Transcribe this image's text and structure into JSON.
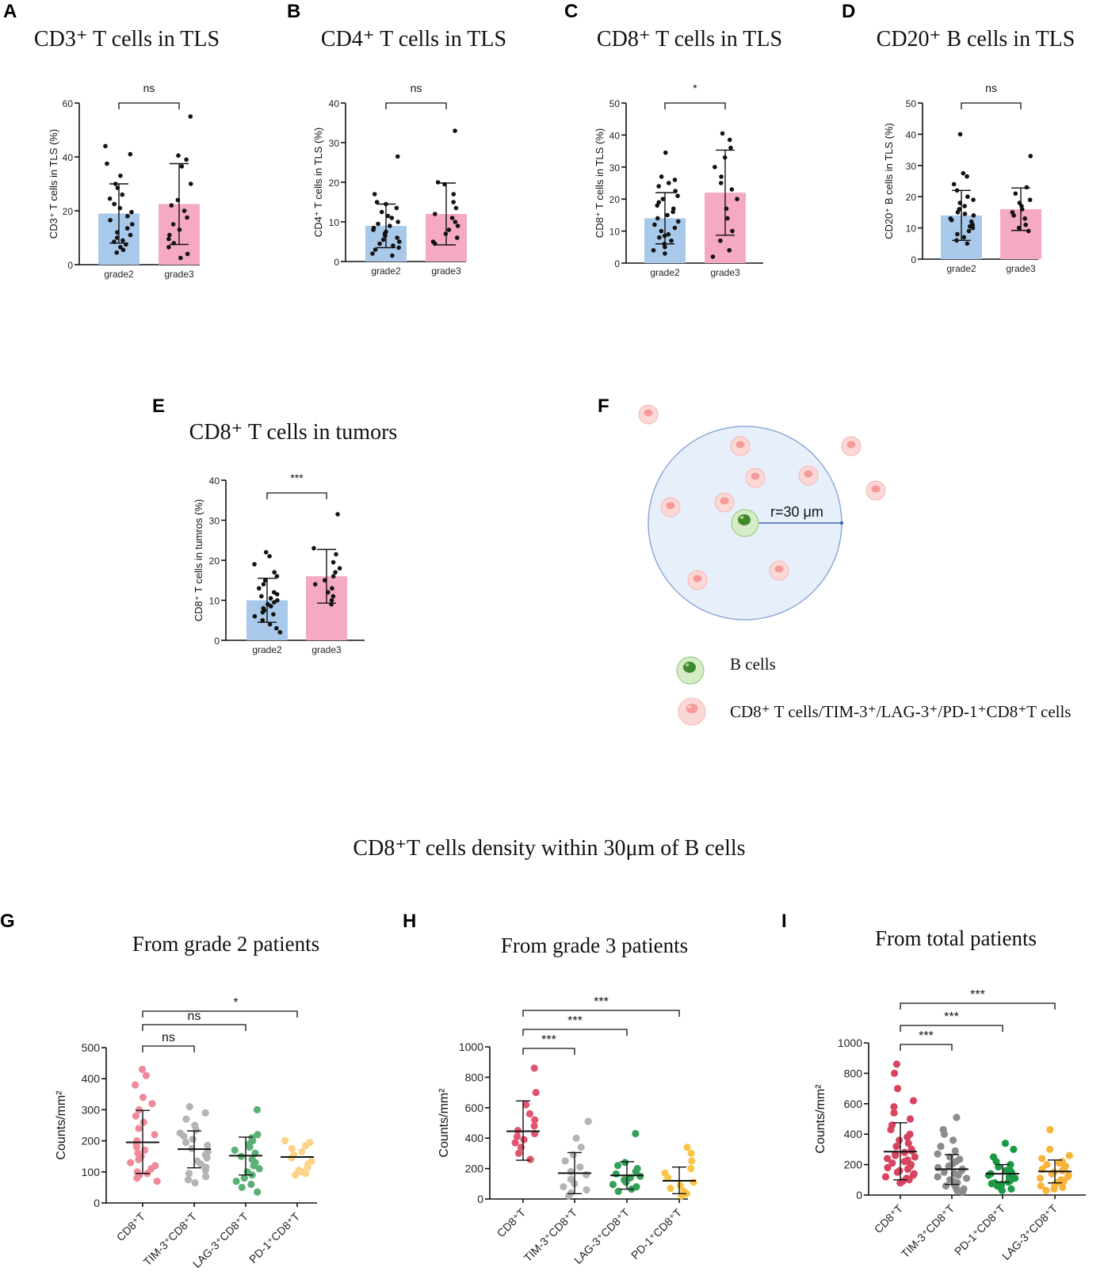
{
  "figure_title": "CD8⁺T cells density within 30μm of B cells",
  "colors": {
    "grade2": "#a9c9ea",
    "grade3": "#f6a9c2",
    "dot": "#111111",
    "g_cd8": "#f08a9a",
    "g_tim3": "#b4b4b4",
    "g_lag3": "#5cb176",
    "g_pd1": "#fcd389",
    "h_cd8": "#e0566f",
    "h_tim3": "#b4b4b4",
    "h_lag3": "#35a05a",
    "h_pd1": "#fbc54a",
    "i_cd8": "#d8435f",
    "i_tim3": "#8c8c8c",
    "i_pd1": "#1a9a45",
    "i_lag3": "#f8b43a",
    "circle_fill": "#e7f0fa",
    "circle_stroke": "#8fa9d8",
    "radius_line": "#3e63b3"
  },
  "diagram": {
    "label": "F",
    "radius_label": "r=30 μm",
    "legend": [
      {
        "name": "b-cell",
        "text": "B cells"
      },
      {
        "name": "t-cell",
        "text": "CD8⁺ T cells/TIM-3⁺/LAG-3⁺/PD-1⁺CD8⁺T cells"
      }
    ]
  },
  "chart_data": [
    {
      "id": "A",
      "type": "bar",
      "label": "A",
      "title": "CD3⁺ T cells in TLS",
      "ylabel": "CD3⁺ T cells in TLS (%)",
      "ylim": [
        0,
        60
      ],
      "yticks": [
        0,
        20,
        40,
        60
      ],
      "categories": [
        "grade2",
        "grade3"
      ],
      "means": [
        19,
        22.5
      ],
      "sd": [
        11,
        15
      ],
      "significance": "ns",
      "points": [
        [
          44,
          41,
          37.5,
          33,
          30,
          28.5,
          26,
          24.5,
          22.5,
          21,
          19.5,
          18,
          16.5,
          15,
          13.5,
          12,
          11,
          10,
          9,
          8.5,
          7.5,
          6.5,
          5.5,
          4.5
        ],
        [
          55,
          40.5,
          39,
          36.5,
          30,
          24,
          22,
          20,
          17.5,
          15,
          13,
          11,
          9.5,
          8,
          6.5,
          4,
          2.5
        ]
      ]
    },
    {
      "id": "B",
      "type": "bar",
      "label": "B",
      "title": "CD4⁺ T cells in TLS",
      "ylabel": "CD4⁺ T cells in TLS (%)",
      "ylim": [
        0,
        40
      ],
      "yticks": [
        0,
        10,
        20,
        30,
        40
      ],
      "categories": [
        "grade2",
        "grade3"
      ],
      "means": [
        9,
        12
      ],
      "sd": [
        5.5,
        7.8
      ],
      "significance": "ns",
      "points": [
        [
          26.5,
          17,
          15,
          14.5,
          13.5,
          12.5,
          11.5,
          11,
          10,
          9.5,
          9,
          8.5,
          8,
          7.5,
          7,
          6.5,
          6,
          5.5,
          5,
          4.5,
          4,
          3.5,
          3,
          2,
          1.5
        ],
        [
          33,
          20,
          19.5,
          17,
          15,
          13.5,
          12,
          11,
          10,
          9,
          8,
          7,
          6,
          5,
          4.5
        ]
      ]
    },
    {
      "id": "C",
      "type": "bar",
      "label": "C",
      "title": "CD8⁺ T cells in TLS",
      "ylabel": "CD8⁺ T cells in TLS (%)",
      "ylim": [
        0,
        50
      ],
      "yticks": [
        0,
        10,
        20,
        30,
        40,
        50
      ],
      "categories": [
        "grade2",
        "grade3"
      ],
      "means": [
        14,
        22
      ],
      "sd": [
        8,
        13.3
      ],
      "significance": "*",
      "points": [
        [
          34.5,
          27,
          26,
          25,
          24,
          22.5,
          21,
          20,
          19,
          18,
          17,
          16,
          15,
          14,
          13,
          12,
          11,
          10,
          9,
          8.5,
          8,
          7,
          6,
          5,
          4,
          3
        ],
        [
          40.5,
          38.5,
          36,
          33,
          30,
          27,
          25,
          23,
          20,
          17,
          14,
          10,
          7,
          4,
          2
        ]
      ]
    },
    {
      "id": "D",
      "type": "bar",
      "label": "D",
      "title": "CD20⁺ B cells in TLS",
      "ylabel": "CD20⁺ B cells in TLS (%)",
      "ylim": [
        0,
        50
      ],
      "yticks": [
        0,
        10,
        20,
        30,
        40,
        50
      ],
      "categories": [
        "grade2",
        "grade3"
      ],
      "means": [
        14,
        16
      ],
      "sd": [
        8,
        6.8
      ],
      "significance": "ns",
      "points": [
        [
          40,
          27.5,
          26.5,
          24,
          22,
          20,
          19,
          18,
          17,
          16,
          15,
          14.5,
          14,
          13,
          12.5,
          12,
          11,
          10.5,
          10,
          9,
          8,
          7,
          6,
          5
        ],
        [
          33,
          23,
          21,
          19,
          18,
          17,
          16,
          15,
          14,
          13,
          11,
          10,
          9
        ]
      ]
    },
    {
      "id": "E",
      "type": "bar",
      "label": "E",
      "title": "CD8⁺ T cells in tumors",
      "ylabel": "CD8⁺ T cells in tumros (%)",
      "ylim": [
        0,
        40
      ],
      "yticks": [
        0,
        10,
        20,
        30,
        40
      ],
      "categories": [
        "grade2",
        "grade3"
      ],
      "means": [
        10,
        16
      ],
      "sd": [
        5.5,
        6.7
      ],
      "significance": "***",
      "points": [
        [
          22,
          21,
          19,
          17,
          16,
          15,
          14,
          13,
          12,
          11.5,
          11,
          10.5,
          10,
          9.5,
          9,
          8.5,
          8,
          7.5,
          7,
          6.5,
          6,
          5,
          4,
          3,
          2
        ],
        [
          31.5,
          23,
          21.5,
          19.5,
          18,
          17,
          16,
          15,
          14,
          13,
          12,
          11,
          10,
          9
        ]
      ]
    },
    {
      "id": "G",
      "type": "scatter",
      "label": "G",
      "title": "From grade 2 patients",
      "ylabel": "Counts/mm²",
      "ylim": [
        0,
        500
      ],
      "yticks": [
        0,
        100,
        200,
        300,
        400,
        500
      ],
      "categories": [
        "CD8⁺T",
        "TIM-3⁺CD8⁺T",
        "LAG-3⁺CD8⁺T",
        "PD-1⁺CD8⁺T"
      ],
      "medians": [
        195,
        173,
        152,
        148
      ],
      "err_low": [
        95,
        113,
        90,
        null
      ],
      "err_high": [
        298,
        232,
        212,
        null
      ],
      "comparisons": [
        {
          "from": 0,
          "to": 1,
          "label": "ns"
        },
        {
          "from": 0,
          "to": 2,
          "label": "ns"
        },
        {
          "from": 0,
          "to": 3,
          "label": "*"
        }
      ],
      "points": [
        [
          430,
          410,
          380,
          340,
          320,
          300,
          280,
          260,
          240,
          220,
          200,
          190,
          180,
          170,
          160,
          150,
          140,
          130,
          120,
          110,
          100,
          95,
          90,
          80,
          70
        ],
        [
          310,
          290,
          270,
          250,
          235,
          225,
          215,
          205,
          195,
          185,
          175,
          165,
          155,
          145,
          135,
          125,
          115,
          105,
          95,
          85,
          75,
          65
        ],
        [
          300,
          220,
          210,
          200,
          190,
          180,
          170,
          160,
          150,
          140,
          130,
          120,
          110,
          100,
          90,
          80,
          70,
          60,
          50,
          35
        ],
        [
          200,
          195,
          185,
          175,
          165,
          155,
          145,
          135,
          125,
          115,
          105,
          100,
          95,
          90
        ]
      ]
    },
    {
      "id": "H",
      "type": "scatter",
      "label": "H",
      "title": "From grade 3 patients",
      "ylabel": "Counts/mm²",
      "ylim": [
        0,
        1000
      ],
      "yticks": [
        0,
        200,
        400,
        600,
        800,
        1000
      ],
      "categories": [
        "CD8⁺T",
        "TIM-3⁺CD8⁺T",
        "LAG-3⁺CD8⁺T",
        "PD-1⁺CD8⁺T"
      ],
      "medians": [
        445,
        170,
        155,
        120
      ],
      "err_low": [
        255,
        35,
        65,
        35
      ],
      "err_high": [
        645,
        305,
        245,
        210
      ],
      "comparisons": [
        {
          "from": 0,
          "to": 1,
          "label": "***"
        },
        {
          "from": 0,
          "to": 2,
          "label": "***"
        },
        {
          "from": 0,
          "to": 3,
          "label": "***"
        }
      ],
      "points": [
        [
          860,
          700,
          620,
          560,
          520,
          480,
          450,
          430,
          410,
          390,
          370,
          340,
          300,
          260
        ],
        [
          510,
          400,
          340,
          290,
          250,
          210,
          180,
          160,
          130,
          100,
          80,
          60,
          40,
          20
        ],
        [
          430,
          240,
          220,
          200,
          180,
          165,
          150,
          140,
          125,
          110,
          95,
          80,
          65,
          50
        ],
        [
          340,
          300,
          250,
          200,
          170,
          140,
          110,
          90,
          70,
          50,
          35,
          20
        ]
      ]
    },
    {
      "id": "I",
      "type": "scatter",
      "label": "I",
      "title": "From total patients",
      "ylabel": "Counts/mm²",
      "ylim": [
        0,
        1000
      ],
      "yticks": [
        0,
        200,
        400,
        600,
        800,
        1000
      ],
      "categories": [
        "CD8⁺T",
        "TIM-3⁺CD8⁺T",
        "PD-1⁺CD8⁺T",
        "LAG-3⁺CD8⁺T"
      ],
      "medians": [
        285,
        170,
        140,
        155
      ],
      "err_low": [
        100,
        70,
        85,
        80
      ],
      "err_high": [
        475,
        265,
        200,
        230
      ],
      "comparisons": [
        {
          "from": 0,
          "to": 1,
          "label": "***"
        },
        {
          "from": 0,
          "to": 2,
          "label": "***"
        },
        {
          "from": 0,
          "to": 3,
          "label": "***"
        }
      ],
      "points": [
        [
          860,
          800,
          700,
          620,
          580,
          540,
          500,
          460,
          430,
          400,
          380,
          360,
          340,
          320,
          300,
          290,
          280,
          270,
          260,
          250,
          240,
          230,
          220,
          210,
          200,
          190,
          180,
          170,
          160,
          150,
          140,
          130,
          120,
          110,
          100,
          90,
          80
        ],
        [
          510,
          430,
          400,
          360,
          320,
          290,
          270,
          250,
          235,
          220,
          205,
          190,
          180,
          170,
          160,
          150,
          140,
          130,
          120,
          110,
          100,
          90,
          80,
          70,
          60,
          50,
          40,
          30,
          20
        ],
        [
          340,
          300,
          250,
          220,
          200,
          185,
          170,
          160,
          150,
          140,
          130,
          120,
          110,
          100,
          95,
          90,
          85,
          80,
          75,
          70,
          60,
          50,
          40,
          30
        ],
        [
          430,
          300,
          260,
          240,
          220,
          210,
          200,
          190,
          180,
          170,
          160,
          150,
          140,
          130,
          120,
          110,
          100,
          90,
          80,
          70,
          60,
          50,
          40,
          30
        ]
      ]
    }
  ]
}
